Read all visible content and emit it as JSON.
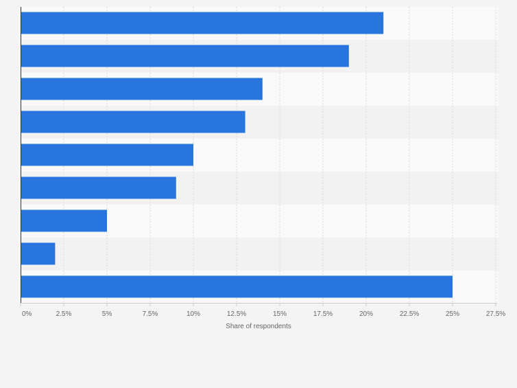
{
  "chart_data": {
    "type": "bar",
    "orientation": "horizontal",
    "title": "",
    "xlabel": "Share of respondents",
    "ylabel": "",
    "categories": [
      "",
      "",
      "",
      "",
      "",
      "",
      "",
      "",
      ""
    ],
    "values": [
      21,
      19,
      14,
      13,
      10,
      9,
      5,
      2,
      25
    ],
    "unit": "%",
    "xlim": [
      0,
      27.5
    ],
    "xticks": [
      0,
      2.5,
      5,
      7.5,
      10,
      12.5,
      15,
      17.5,
      20,
      22.5,
      25,
      27.5
    ],
    "xtick_labels": [
      "0%",
      "2.5%",
      "5%",
      "7.5%",
      "10%",
      "12.5%",
      "15%",
      "17.5%",
      "20%",
      "22.5%",
      "25%",
      "27.5%"
    ],
    "grid": true,
    "colors": {
      "bar": "#2876dd",
      "band_light": "#f9f9f9",
      "band_dark": "#f2f2f2",
      "gridline": "#dcdcdc",
      "axis": "#333333",
      "tick_text": "#666666"
    }
  }
}
